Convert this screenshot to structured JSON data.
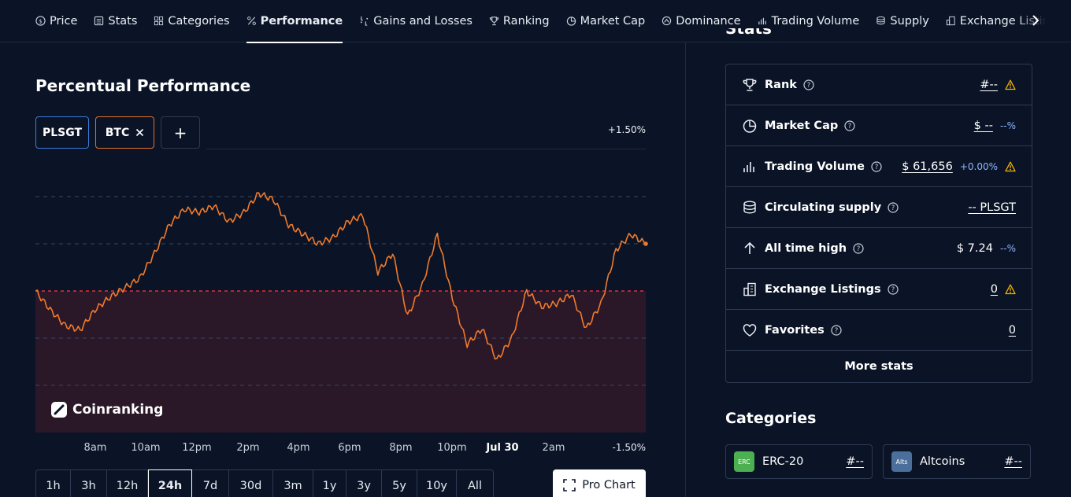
{
  "nav": {
    "items": [
      {
        "label": "Price",
        "icon": "dollar-circle-icon",
        "active": false
      },
      {
        "label": "Stats",
        "icon": "list-icon",
        "active": false
      },
      {
        "label": "Categories",
        "icon": "grid-icon",
        "active": false
      },
      {
        "label": "Performance",
        "icon": "percent-icon",
        "active": true
      },
      {
        "label": "Gains and Losses",
        "icon": "gains-losses-icon",
        "active": false
      },
      {
        "label": "Ranking",
        "icon": "trophy-icon",
        "active": false
      },
      {
        "label": "Market Cap",
        "icon": "pie-icon",
        "active": false
      },
      {
        "label": "Dominance",
        "icon": "dominance-icon",
        "active": false
      },
      {
        "label": "Trading Volume",
        "icon": "bars-icon",
        "active": false
      },
      {
        "label": "Supply",
        "icon": "coins-icon",
        "active": false
      },
      {
        "label": "Exchange Listin",
        "icon": "building-icon",
        "active": false
      }
    ]
  },
  "performance": {
    "title": "Percentual Performance",
    "coins": [
      {
        "label": "PLSGT",
        "color": "#3b7bd6"
      },
      {
        "label": "BTC",
        "color": "#e2702b",
        "removable": true
      }
    ],
    "add_label": "+",
    "max_label": "+1.50%",
    "min_label": "-1.50%",
    "watermark": "Coinranking",
    "x_ticks": [
      "8am",
      "10am",
      "12pm",
      "2pm",
      "4pm",
      "6pm",
      "8pm",
      "10pm",
      "Jul 30",
      "2am"
    ],
    "periods": [
      "1h",
      "3h",
      "12h",
      "24h",
      "7d",
      "30d",
      "3m",
      "1y",
      "3y",
      "5y",
      "10y",
      "All"
    ],
    "active_period": "24h",
    "pro_chart_label": "Pro Chart",
    "line_color": "#f07a2c",
    "baseline_color": "#e0303c"
  },
  "chart_data": {
    "type": "line",
    "ylim": [
      -1.5,
      1.5
    ],
    "series": [
      {
        "name": "BTC",
        "values": [
          0.0,
          -0.3,
          -0.55,
          -0.62,
          -0.3,
          -0.1,
          0.05,
          0.2,
          0.6,
          1.05,
          1.3,
          1.25,
          1.35,
          1.1,
          1.25,
          1.55,
          1.45,
          1.05,
          0.9,
          0.75,
          0.85,
          1.1,
          1.2,
          0.3,
          0.6,
          -0.4,
          0.1,
          0.9,
          -0.1,
          -0.85,
          -0.6,
          -1.1,
          -0.75,
          0.0,
          -0.25,
          -0.2,
          -0.05,
          -0.6,
          -0.2,
          0.65,
          0.9,
          0.75
        ]
      }
    ]
  },
  "stats": {
    "heading": "Stats",
    "rows": [
      {
        "label": "Rank",
        "icon": "trophy-icon",
        "value": "#--",
        "warn": true
      },
      {
        "label": "Market Cap",
        "icon": "pie-icon",
        "value": "$ --",
        "pct": "--%"
      },
      {
        "label": "Trading Volume",
        "icon": "bars-icon",
        "value": "$ 61,656",
        "pct": "+0.00%",
        "warn": true
      },
      {
        "label": "Circulating supply",
        "icon": "coins-icon",
        "value": "-- PLSGT"
      },
      {
        "label": "All time high",
        "icon": "arrow-up-icon",
        "value": "$ 7.24",
        "pct": "--%",
        "plain": true
      },
      {
        "label": "Exchange Listings",
        "icon": "building-icon",
        "value": "0",
        "warn": true
      },
      {
        "label": "Favorites",
        "icon": "heart-icon",
        "value": "0"
      }
    ],
    "more_label": "More stats"
  },
  "categories": {
    "title": "Categories",
    "items": [
      {
        "badge": "ERC",
        "badge_color": "#4caf50",
        "label": "ERC-20",
        "rank": "#--"
      },
      {
        "badge": "Alts",
        "badge_color": "#4a6f9a",
        "label": "Altcoins",
        "rank": "#--"
      }
    ]
  },
  "warn_color": "#f5b400"
}
